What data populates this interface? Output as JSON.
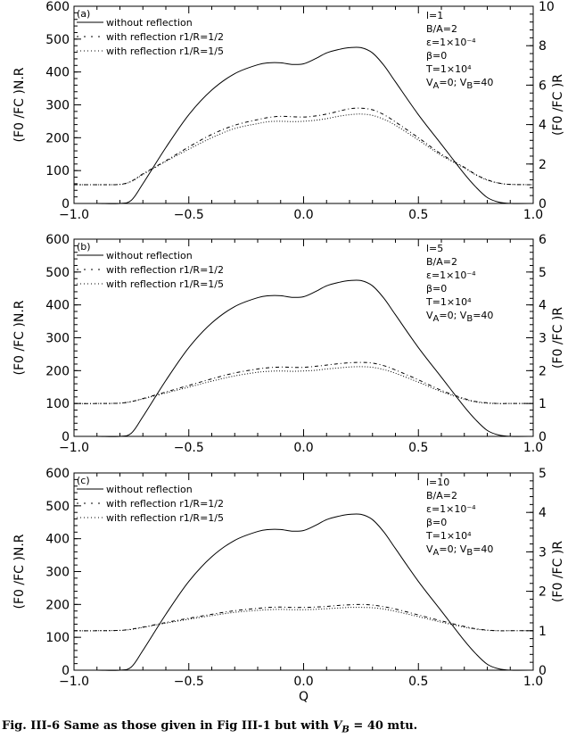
{
  "caption": {
    "prefix": "Fig. III-6 Same as those given in Fig III-1 but with ",
    "variable": "V_B",
    "suffix": " = 40 mtu."
  },
  "colors": {
    "axis": "#000000",
    "line": "#000000",
    "background": "#ffffff"
  },
  "chart_data": [
    {
      "type": "line",
      "panel_label": "(a)",
      "xlabel": "",
      "ylabel_left": "(F0 /FC )N.R",
      "ylabel_right": "(F0 /FC )R",
      "xlim": [
        -1.0,
        1.0
      ],
      "ylim_left": [
        0,
        600
      ],
      "ylim_right": [
        0,
        10
      ],
      "xticks": [
        "−1.0",
        "−0.5",
        "0.0",
        "0.5",
        "1.0"
      ],
      "yticks_left": [
        "0",
        "100",
        "200",
        "300",
        "400",
        "500",
        "600"
      ],
      "yticks_right": [
        "0",
        "2",
        "4",
        "6",
        "8",
        "10"
      ],
      "params": [
        "l=1",
        "B/A=2",
        "ε=1×10⁻⁴",
        "β=0",
        "T=1×10⁴",
        "VA=0; VB=40"
      ],
      "x": [
        -1.0,
        -0.9,
        -0.8,
        -0.75,
        -0.7,
        -0.6,
        -0.5,
        -0.4,
        -0.3,
        -0.2,
        -0.15,
        -0.1,
        -0.05,
        0.0,
        0.05,
        0.1,
        0.15,
        0.2,
        0.25,
        0.3,
        0.35,
        0.4,
        0.5,
        0.6,
        0.7,
        0.75,
        0.8,
        0.85,
        0.9,
        1.0
      ],
      "series": [
        {
          "name": "without reflection",
          "style": "solid",
          "values": [
            0,
            0,
            0,
            10,
            60,
            170,
            270,
            345,
            395,
            422,
            428,
            428,
            423,
            425,
            440,
            458,
            468,
            474,
            474,
            458,
            420,
            370,
            270,
            180,
            90,
            50,
            18,
            4,
            0,
            0
          ]
        },
        {
          "name": "with reflection r1/R=1/2",
          "style": "dashdot",
          "values": [
            57,
            57,
            58,
            68,
            90,
            130,
            172,
            210,
            238,
            255,
            262,
            265,
            264,
            263,
            266,
            272,
            280,
            288,
            290,
            285,
            270,
            248,
            200,
            150,
            110,
            88,
            72,
            62,
            58,
            57
          ]
        },
        {
          "name": "with reflection r1/R=1/5",
          "style": "dotted",
          "values": [
            57,
            57,
            58,
            67,
            88,
            128,
            165,
            200,
            228,
            243,
            249,
            250,
            249,
            250,
            253,
            258,
            265,
            270,
            272,
            268,
            256,
            238,
            193,
            146,
            108,
            87,
            71,
            62,
            58,
            57
          ]
        }
      ]
    },
    {
      "type": "line",
      "panel_label": "(b)",
      "xlabel": "",
      "ylabel_left": "(F0 /FC )N.R",
      "ylabel_right": "(F0 /FC )R",
      "xlim": [
        -1.0,
        1.0
      ],
      "ylim_left": [
        0,
        600
      ],
      "ylim_right": [
        0,
        6
      ],
      "xticks": [
        "−1.0",
        "−0.5",
        "0.0",
        "0.5",
        "1.0"
      ],
      "yticks_left": [
        "0",
        "100",
        "200",
        "300",
        "400",
        "500",
        "600"
      ],
      "yticks_right": [
        "0",
        "1",
        "2",
        "3",
        "4",
        "5",
        "6"
      ],
      "params": [
        "l=5",
        "B/A=2",
        "ε=1×10⁻⁴",
        "β=0",
        "T=1×10⁴",
        "VA=0; VB=40"
      ],
      "x": [
        -1.0,
        -0.9,
        -0.8,
        -0.75,
        -0.7,
        -0.6,
        -0.5,
        -0.4,
        -0.3,
        -0.2,
        -0.15,
        -0.1,
        -0.05,
        0.0,
        0.05,
        0.1,
        0.15,
        0.2,
        0.25,
        0.3,
        0.35,
        0.4,
        0.5,
        0.6,
        0.7,
        0.75,
        0.8,
        0.85,
        0.9,
        1.0
      ],
      "series": [
        {
          "name": "without reflection",
          "style": "solid",
          "values": [
            0,
            0,
            0,
            10,
            60,
            170,
            270,
            345,
            395,
            422,
            428,
            428,
            423,
            425,
            440,
            458,
            468,
            474,
            474,
            458,
            420,
            370,
            270,
            180,
            90,
            50,
            18,
            4,
            0,
            0
          ]
        },
        {
          "name": "with reflection r1/R=1/2",
          "style": "dashdot",
          "values": [
            100,
            100,
            101,
            106,
            115,
            135,
            155,
            175,
            193,
            205,
            209,
            211,
            210,
            210,
            213,
            217,
            221,
            224,
            225,
            223,
            215,
            202,
            172,
            140,
            115,
            106,
            102,
            100,
            100,
            100
          ]
        },
        {
          "name": "with reflection r1/R=1/5",
          "style": "dotted",
          "values": [
            100,
            100,
            101,
            106,
            114,
            132,
            150,
            168,
            184,
            195,
            198,
            199,
            198,
            199,
            201,
            205,
            208,
            211,
            212,
            210,
            203,
            192,
            165,
            136,
            113,
            105,
            101,
            100,
            100,
            100
          ]
        }
      ]
    },
    {
      "type": "line",
      "panel_label": "(c)",
      "xlabel": "Q",
      "ylabel_left": "(F0 /FC )N.R",
      "ylabel_right": "(F0 /FC )R",
      "xlim": [
        -1.0,
        1.0
      ],
      "ylim_left": [
        0,
        600
      ],
      "ylim_right": [
        0,
        5
      ],
      "xticks": [
        "−1.0",
        "−0.5",
        "0.0",
        "0.5",
        "1.0"
      ],
      "yticks_left": [
        "0",
        "100",
        "200",
        "300",
        "400",
        "500",
        "600"
      ],
      "yticks_right": [
        "0",
        "1",
        "2",
        "3",
        "4",
        "5"
      ],
      "params": [
        "l=10",
        "B/A=2",
        "ε=1×10⁻⁴",
        "β=0",
        "T=1×10⁴",
        "VA=0; VB=40"
      ],
      "x": [
        -1.0,
        -0.9,
        -0.8,
        -0.75,
        -0.7,
        -0.6,
        -0.5,
        -0.4,
        -0.3,
        -0.2,
        -0.15,
        -0.1,
        -0.05,
        0.0,
        0.05,
        0.1,
        0.15,
        0.2,
        0.25,
        0.3,
        0.35,
        0.4,
        0.5,
        0.6,
        0.7,
        0.75,
        0.8,
        0.85,
        0.9,
        1.0
      ],
      "series": [
        {
          "name": "without reflection",
          "style": "solid",
          "values": [
            0,
            0,
            0,
            10,
            60,
            170,
            270,
            345,
            395,
            422,
            428,
            428,
            423,
            425,
            440,
            458,
            468,
            474,
            474,
            458,
            420,
            370,
            270,
            180,
            90,
            50,
            18,
            4,
            0,
            0
          ]
        },
        {
          "name": "with reflection r1/R=1/2",
          "style": "dashdot",
          "values": [
            120,
            120,
            121,
            125,
            131,
            145,
            158,
            170,
            181,
            188,
            191,
            192,
            191,
            191,
            192,
            194,
            197,
            199,
            200,
            198,
            193,
            186,
            168,
            150,
            133,
            126,
            122,
            120,
            120,
            120
          ]
        },
        {
          "name": "with reflection r1/R=1/5",
          "style": "dotted",
          "values": [
            120,
            120,
            121,
            124,
            130,
            143,
            155,
            166,
            176,
            182,
            184,
            185,
            184,
            184,
            185,
            187,
            189,
            191,
            191,
            190,
            186,
            179,
            163,
            146,
            131,
            125,
            121,
            120,
            120,
            120
          ]
        }
      ]
    }
  ]
}
